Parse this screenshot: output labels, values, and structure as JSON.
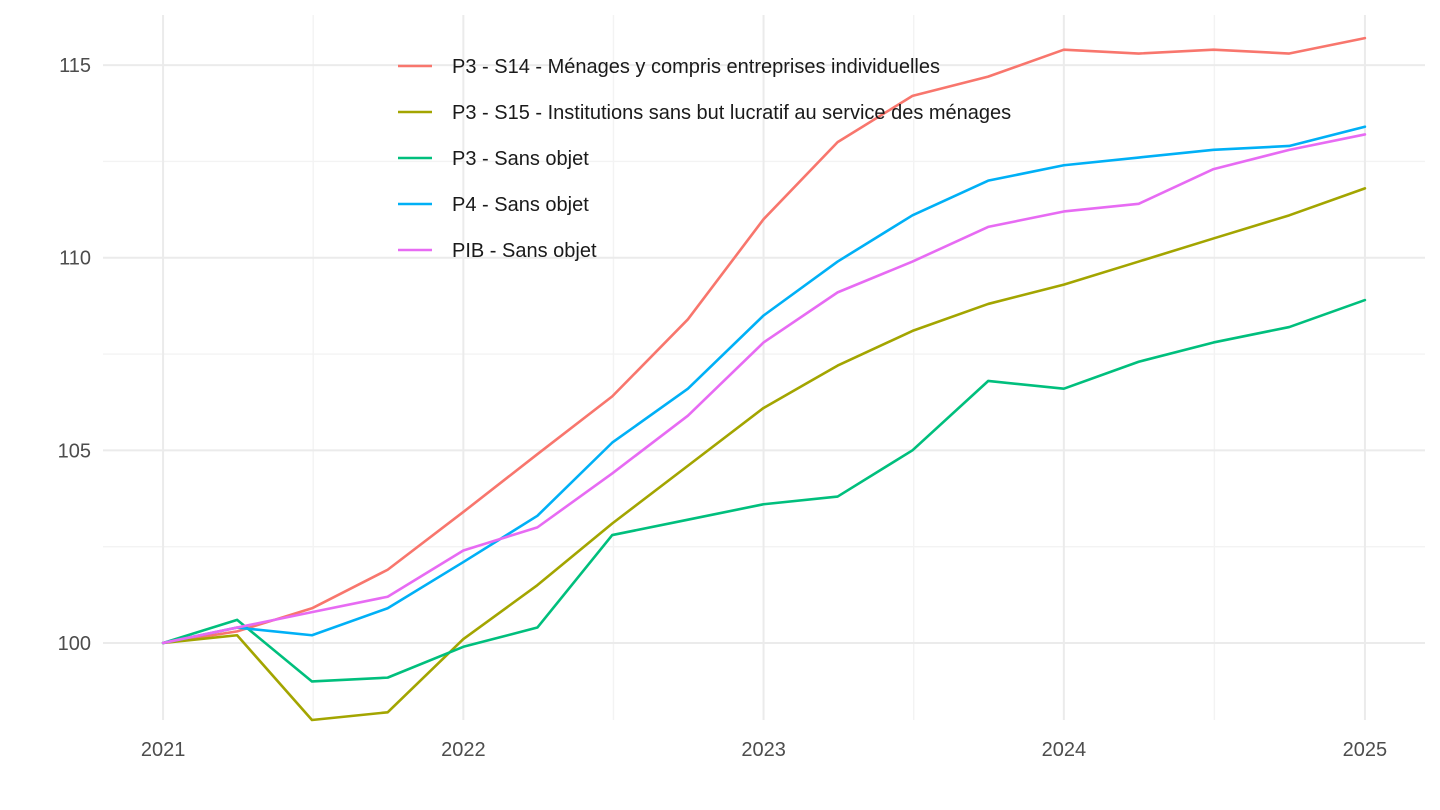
{
  "chart_data": {
    "type": "line",
    "title": "",
    "xlabel": "",
    "ylabel": "",
    "x": [
      "2021-01-01",
      "2021-04-01",
      "2021-07-01",
      "2021-10-01",
      "2022-01-01",
      "2022-04-01",
      "2022-07-01",
      "2022-10-01",
      "2023-01-01",
      "2023-04-01",
      "2023-07-01",
      "2023-10-01",
      "2024-01-01",
      "2024-04-01",
      "2024-07-01",
      "2024-10-01",
      "2025-01-01"
    ],
    "x_ticks": [
      "2021",
      "2022",
      "2023",
      "2024",
      "2025"
    ],
    "y_ticks": [
      100,
      105,
      110,
      115
    ],
    "ylim": [
      98,
      116.3
    ],
    "grid": true,
    "legend_position": "top-center inside",
    "series": [
      {
        "name": "P3 - S14 - Ménages y compris entreprises individuelles",
        "color": "#F8766D",
        "values": [
          100,
          100.3,
          100.9,
          101.9,
          103.4,
          104.9,
          106.4,
          108.4,
          111.0,
          113.0,
          114.2,
          114.7,
          115.4,
          115.3,
          115.4,
          115.3,
          115.7
        ]
      },
      {
        "name": "P3 - S15 - Institutions sans but lucratif au service des ménages",
        "color": "#A3A500",
        "values": [
          100,
          100.2,
          98.0,
          98.2,
          100.1,
          101.5,
          103.1,
          104.6,
          106.1,
          107.2,
          108.1,
          108.8,
          109.3,
          109.9,
          110.5,
          111.1,
          111.8
        ]
      },
      {
        "name": "P3 - Sans objet",
        "color": "#00BF7D",
        "values": [
          100,
          100.6,
          99.0,
          99.1,
          99.9,
          100.4,
          102.8,
          103.2,
          103.6,
          103.8,
          105.0,
          106.8,
          106.6,
          107.3,
          107.8,
          108.2,
          108.9
        ]
      },
      {
        "name": "P4 - Sans objet",
        "color": "#00B0F6",
        "values": [
          100,
          100.4,
          100.2,
          100.9,
          102.1,
          103.3,
          105.2,
          106.6,
          108.5,
          109.9,
          111.1,
          112.0,
          112.4,
          112.6,
          112.8,
          112.9,
          113.4
        ]
      },
      {
        "name": "PIB - Sans objet",
        "color": "#E76BF3",
        "values": [
          100,
          100.4,
          100.8,
          101.2,
          102.4,
          103.0,
          104.4,
          105.9,
          107.8,
          109.1,
          109.9,
          110.8,
          111.2,
          111.4,
          112.3,
          112.8,
          113.2
        ]
      }
    ]
  }
}
